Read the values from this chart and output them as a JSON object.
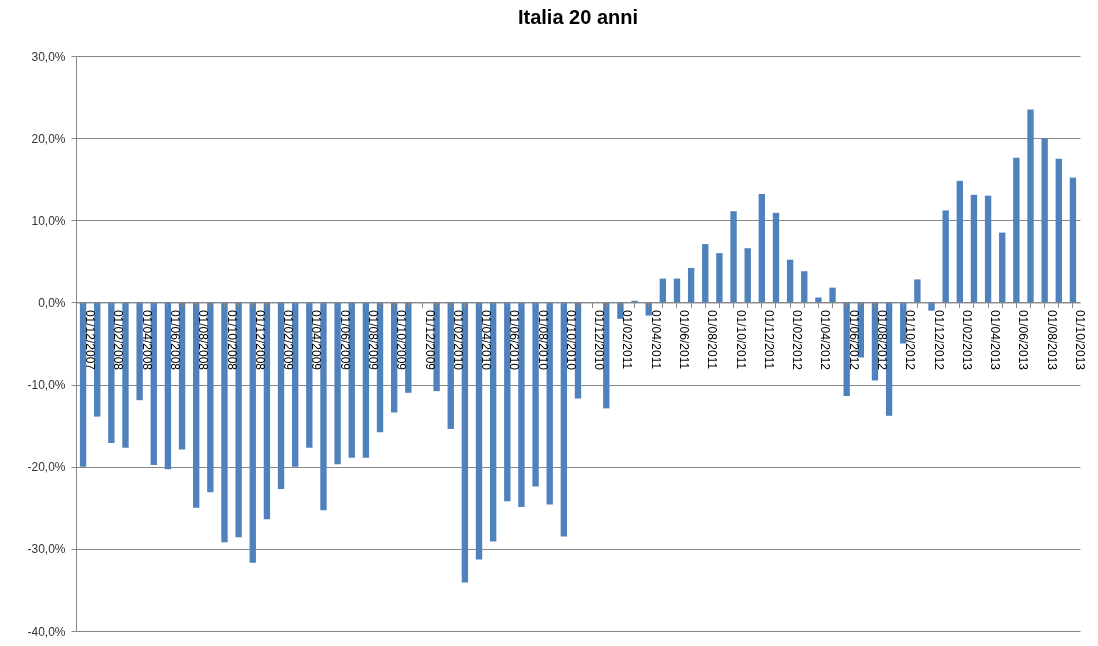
{
  "chart_data": {
    "type": "bar",
    "title": "Italia 20 anni",
    "categories": [
      "01/12/2007",
      null,
      "01/02/2008",
      null,
      "01/04/2008",
      null,
      "01/06/2008",
      null,
      "01/08/2008",
      null,
      "01/10/2008",
      null,
      "01/12/2008",
      null,
      "01/02/2009",
      null,
      "01/04/2009",
      null,
      "01/06/2009",
      null,
      "01/08/2009",
      null,
      "01/10/2009",
      null,
      "01/12/2009",
      null,
      "01/02/2010",
      null,
      "01/04/2010",
      null,
      "01/06/2010",
      null,
      "01/08/2010",
      null,
      "01/10/2010",
      null,
      "01/12/2010",
      null,
      "01/02/2011",
      null,
      "01/04/2011",
      null,
      "01/06/2011",
      null,
      "01/08/2011",
      null,
      "01/10/2011",
      null,
      "01/12/2011",
      null,
      "01/02/2012",
      null,
      "01/04/2012",
      null,
      "01/06/2012",
      null,
      "01/08/2012",
      null,
      "01/10/2012",
      null,
      "01/12/2012",
      null,
      "01/02/2013",
      null,
      "01/04/2013",
      null,
      "01/06/2013",
      null,
      "01/08/2013",
      null,
      "01/10/2013"
    ],
    "values": [
      -20.0,
      -13.9,
      -17.1,
      -17.7,
      -11.9,
      -19.8,
      -20.3,
      -17.9,
      -25.0,
      -23.1,
      -29.2,
      -28.6,
      -31.7,
      -26.4,
      -22.7,
      -20.0,
      -17.7,
      -25.3,
      -19.7,
      -18.9,
      -18.9,
      -15.8,
      -13.4,
      -11.0,
      null,
      -10.8,
      -15.4,
      -34.1,
      -31.3,
      -29.1,
      -24.2,
      -24.9,
      -22.4,
      -24.6,
      -28.5,
      -11.7,
      null,
      -12.9,
      -2.0,
      0.2,
      -1.6,
      2.9,
      2.9,
      4.2,
      7.1,
      6.0,
      11.1,
      6.6,
      13.2,
      10.9,
      5.2,
      3.8,
      0.6,
      1.8,
      -11.4,
      -6.7,
      -9.5,
      -13.8,
      -5.0,
      2.8,
      -1.0,
      11.2,
      14.8,
      13.1,
      13.0,
      8.5,
      17.6,
      23.5,
      20.0,
      17.5,
      15.2
    ],
    "color": "#4f81bd",
    "ylim": [
      -40,
      30
    ],
    "yticks": [
      {
        "value": -40,
        "label": "-40,0%"
      },
      {
        "value": -30,
        "label": "-30,0%"
      },
      {
        "value": -20,
        "label": "-20,0%"
      },
      {
        "value": -10,
        "label": "-10,0%"
      },
      {
        "value": 0,
        "label": "0,0%"
      },
      {
        "value": 10,
        "label": "10,0%"
      },
      {
        "value": 20,
        "label": "20,0%"
      },
      {
        "value": 30,
        "label": "30,0%"
      }
    ],
    "grid": "y"
  }
}
